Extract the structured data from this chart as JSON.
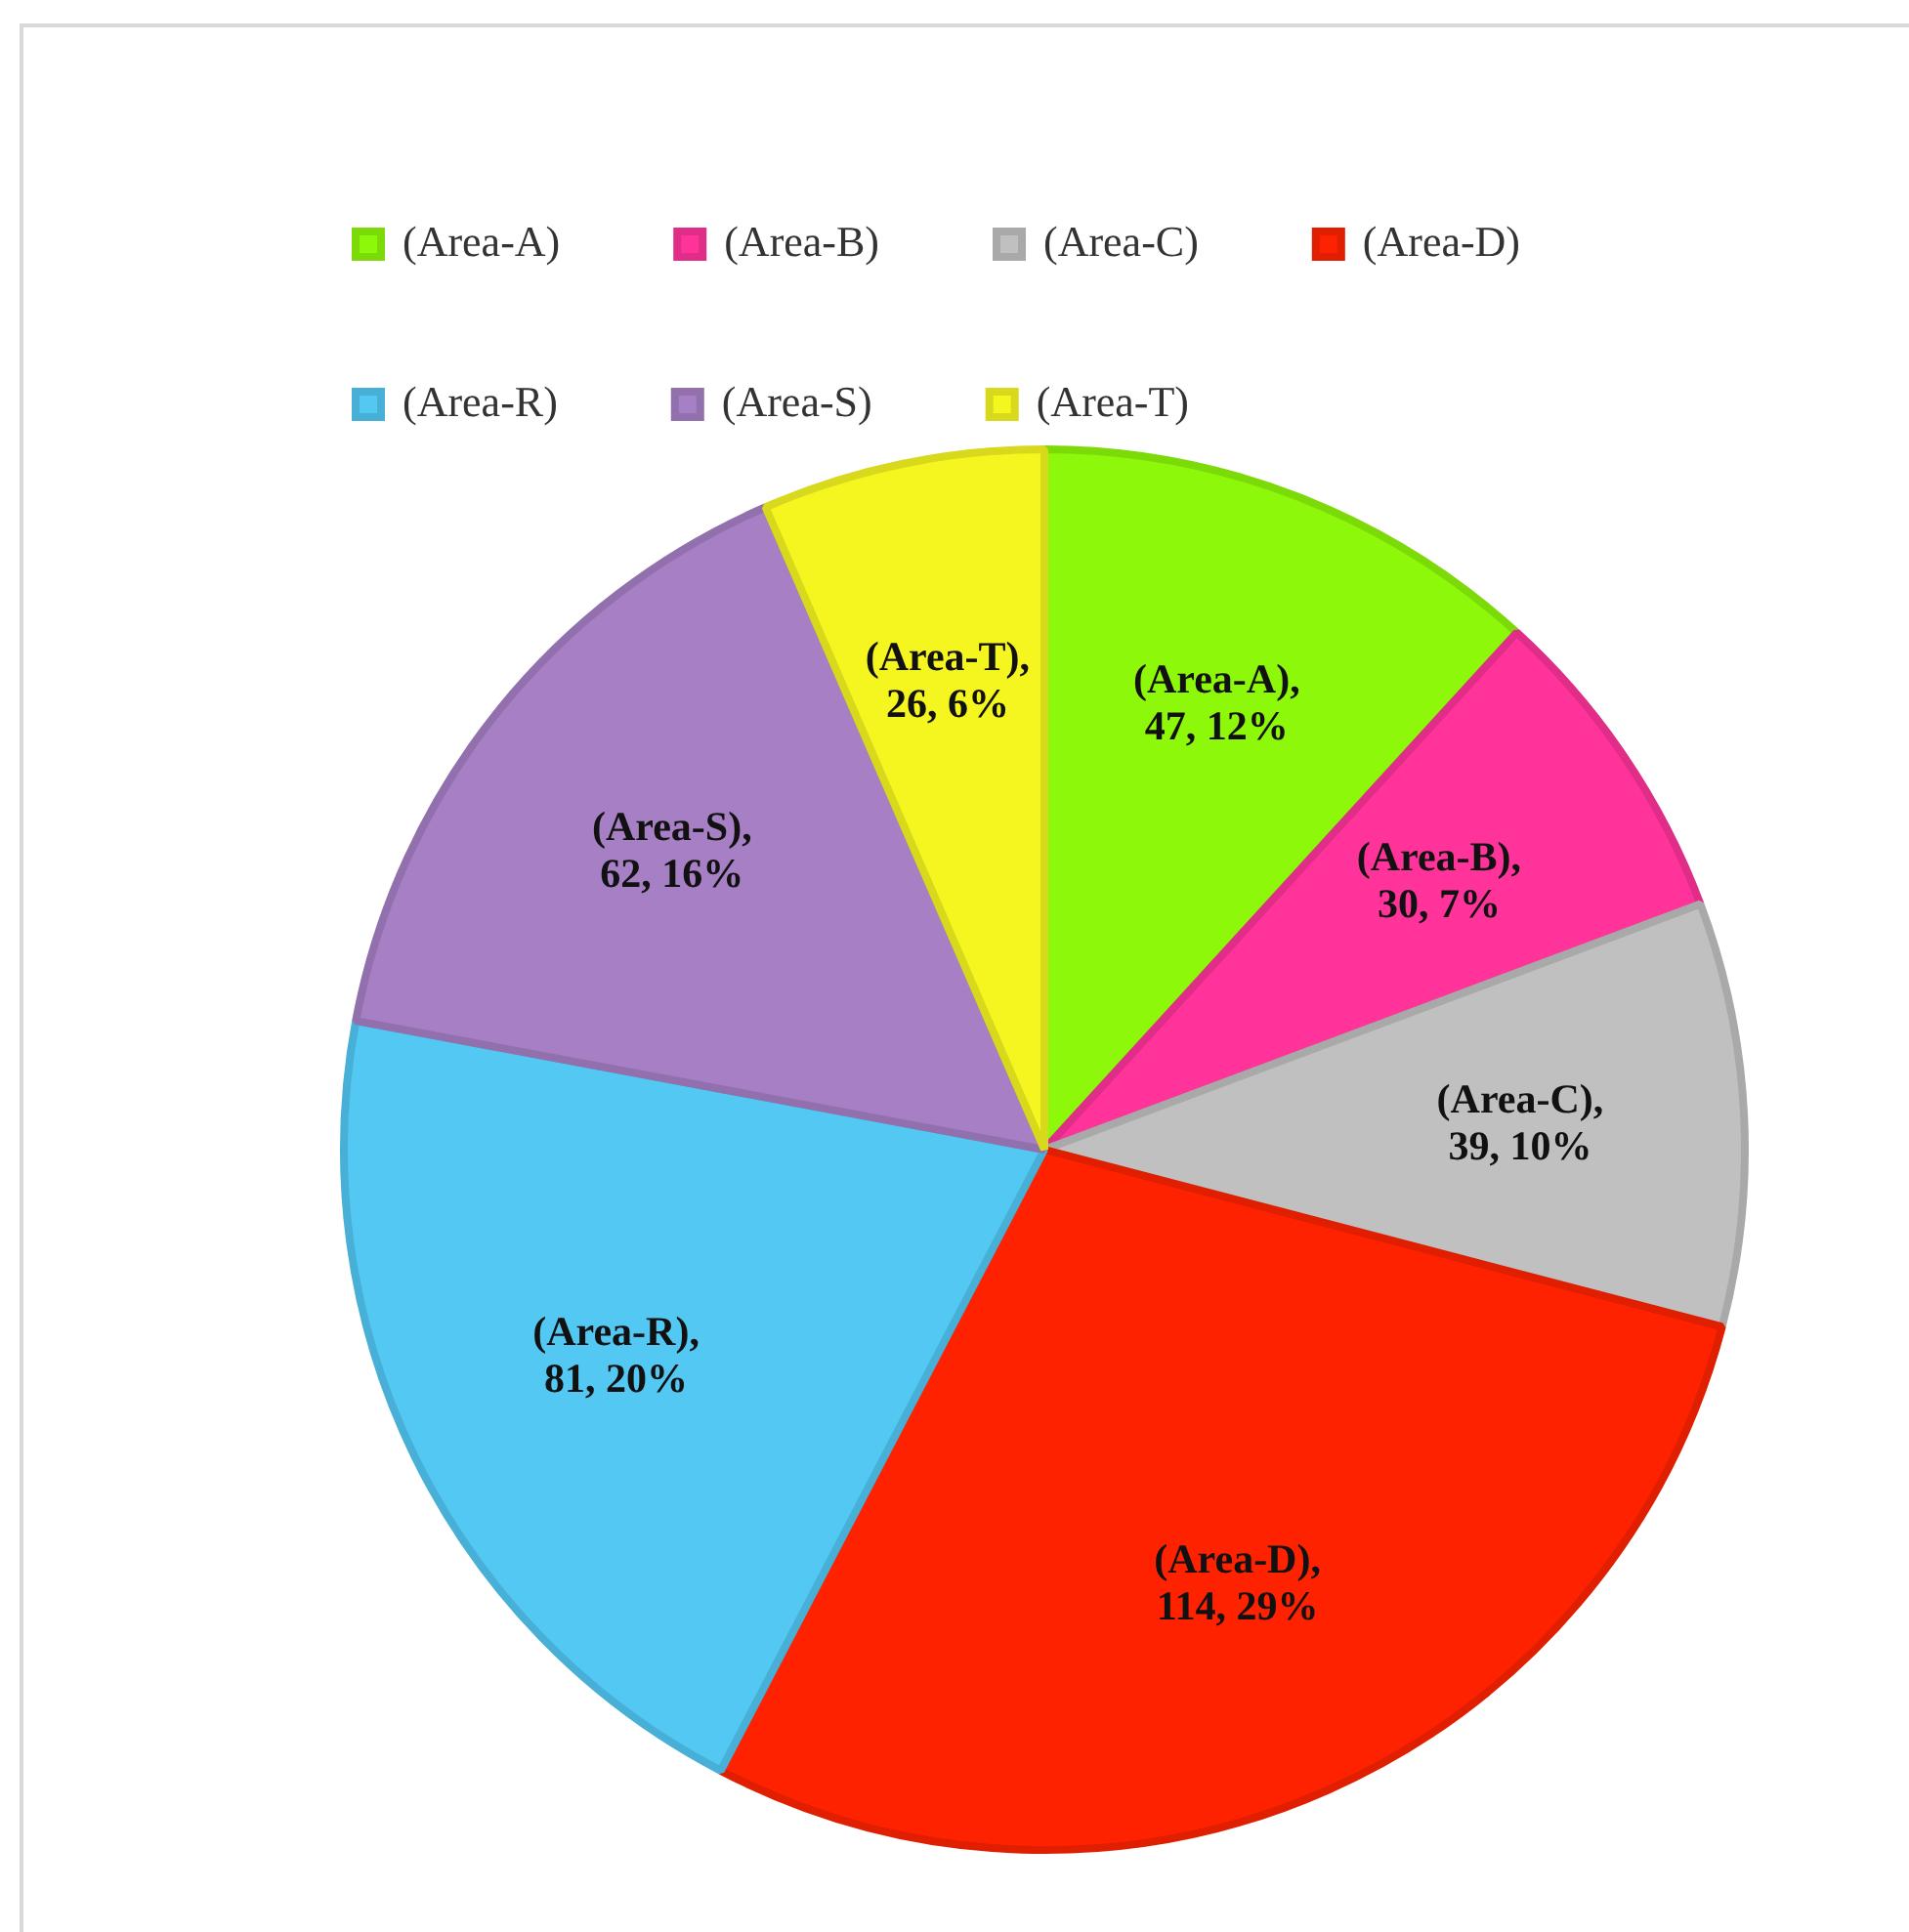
{
  "chart_data": {
    "type": "pie",
    "categories": [
      "(Area-A)",
      "(Area-B)",
      "(Area-C)",
      "(Area-D)",
      "(Area-R)",
      "(Area-S)",
      "(Area-T)"
    ],
    "values": [
      47,
      30,
      39,
      114,
      81,
      62,
      26
    ],
    "colors": [
      "#8ef80a",
      "#ff3399",
      "#c0c0c0",
      "#ff2200",
      "#52c8f3",
      "#a67fc5",
      "#f5f520"
    ],
    "value_labels": [
      "(Area-A),\n47, 12%",
      "(Area-B),\n30, 7%",
      "(Area-C),\n39, 10%",
      "(Area-D),\n114, 29%",
      "(Area-R),\n81, 20%",
      "(Area-S),\n62, 16%",
      "(Area-T),\n26, 6%"
    ],
    "legend": "top left"
  }
}
